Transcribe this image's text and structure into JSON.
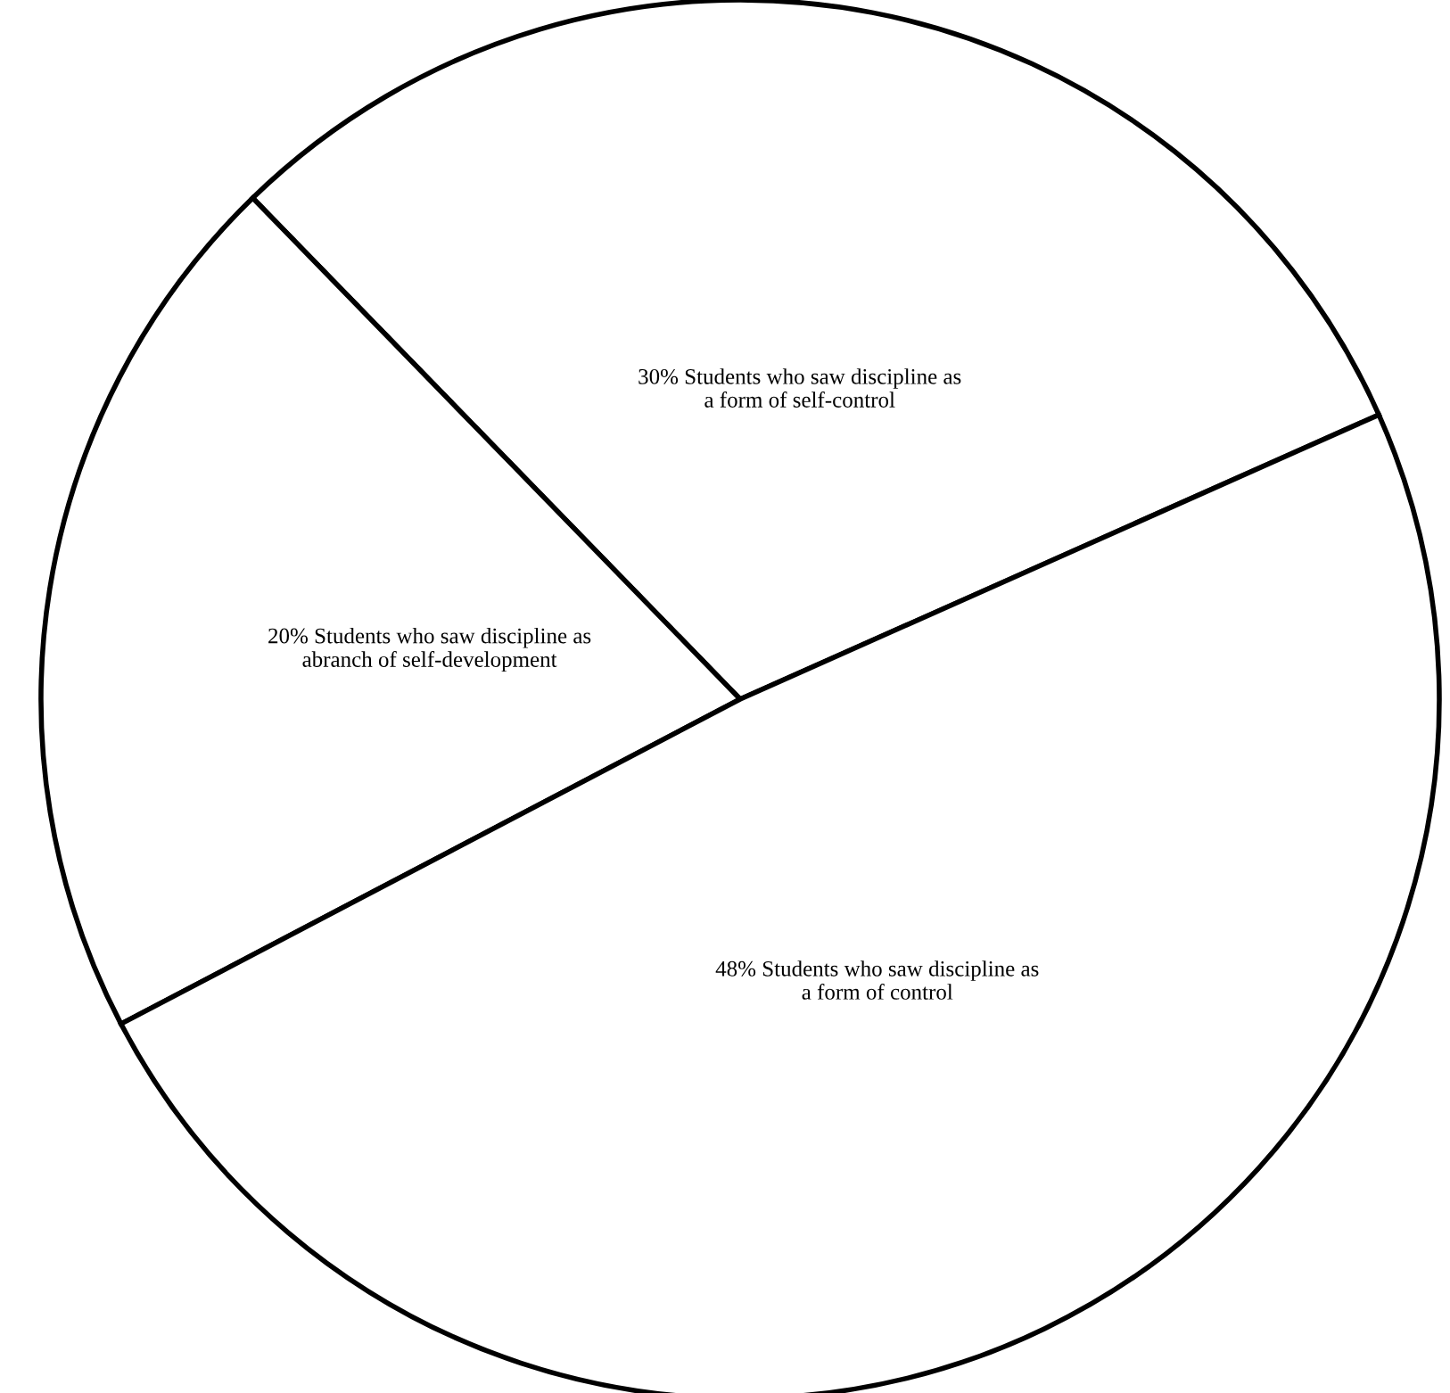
{
  "chart_data": {
    "type": "pie",
    "categories": [
      "Students who saw discipline as\na form of self-control",
      "Students who saw discipline as\nabranch of self-development",
      "Students who saw discipline as\na form of control"
    ],
    "values": [
      30,
      20,
      48
    ],
    "value_labels": [
      "30%",
      "20%",
      "48%"
    ],
    "colors": [
      "#ffffff",
      "#ffffff",
      "#ffffff"
    ]
  }
}
